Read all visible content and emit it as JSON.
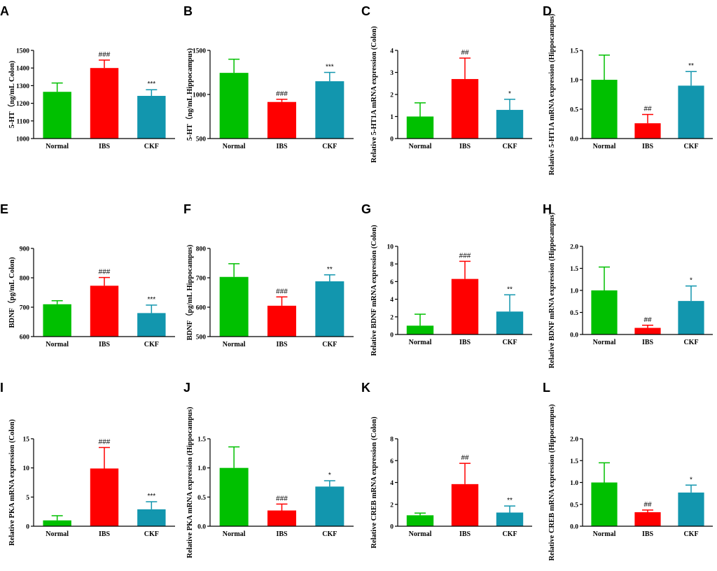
{
  "colors": {
    "Normal": "#00c000",
    "IBS": "#ff0000",
    "CKF": "#1296ae"
  },
  "chart_data": [
    {
      "panel": "A",
      "type": "bar",
      "ylabel": "5-HT（ng/mL Colon)",
      "categories": [
        "Normal",
        "IBS",
        "CKF"
      ],
      "ylim": [
        1000,
        1500
      ],
      "yticks": [
        "1000",
        "1100",
        "1200",
        "1300",
        "1400",
        "1500"
      ],
      "values": [
        1265,
        1400,
        1242
      ],
      "errors": [
        50,
        45,
        35
      ],
      "sig": [
        "",
        "###",
        "***"
      ]
    },
    {
      "panel": "B",
      "type": "bar",
      "ylabel": "5-HT（ng/mL Hippocampus)",
      "categories": [
        "Normal",
        "IBS",
        "CKF"
      ],
      "ylim": [
        500,
        1500
      ],
      "yticks": [
        "500",
        "1000",
        "1500"
      ],
      "values": [
        1245,
        915,
        1150
      ],
      "errors": [
        155,
        30,
        100
      ],
      "sig": [
        "",
        "###",
        "***"
      ]
    },
    {
      "panel": "C",
      "type": "bar",
      "ylabel": "Relative 5-HT1A mRNA expression (Colon)",
      "categories": [
        "Normal",
        "IBS",
        "CKF"
      ],
      "ylim": [
        0,
        4
      ],
      "yticks": [
        "0",
        "1",
        "2",
        "3",
        "4"
      ],
      "values": [
        1.0,
        2.7,
        1.3
      ],
      "errors": [
        0.62,
        0.95,
        0.48
      ],
      "sig": [
        "",
        "##",
        "*"
      ]
    },
    {
      "panel": "D",
      "type": "bar",
      "ylabel": "Relative 5-HT1A mRNA expression (Hippocampus)",
      "categories": [
        "Normal",
        "IBS",
        "CKF"
      ],
      "ylim": [
        0,
        1.5
      ],
      "yticks": [
        "0.0",
        "0.5",
        "1.0",
        "1.5"
      ],
      "values": [
        1.0,
        0.26,
        0.9
      ],
      "errors": [
        0.42,
        0.15,
        0.24
      ],
      "sig": [
        "",
        "##",
        "**"
      ]
    },
    {
      "panel": "E",
      "type": "bar",
      "ylabel": "BDNF（pg/mL Colon)",
      "categories": [
        "Normal",
        "IBS",
        "CKF"
      ],
      "ylim": [
        600,
        900
      ],
      "yticks": [
        "600",
        "700",
        "800",
        "900"
      ],
      "values": [
        710,
        773,
        680
      ],
      "errors": [
        12,
        28,
        27
      ],
      "sig": [
        "",
        "###",
        "***"
      ]
    },
    {
      "panel": "F",
      "type": "bar",
      "ylabel": "BDNF（pg/mL Hippocampus)",
      "categories": [
        "Normal",
        "IBS",
        "CKF"
      ],
      "ylim": [
        500,
        800
      ],
      "yticks": [
        "500",
        "600",
        "700",
        "800"
      ],
      "values": [
        703,
        605,
        688
      ],
      "errors": [
        45,
        30,
        22
      ],
      "sig": [
        "",
        "###",
        "**"
      ]
    },
    {
      "panel": "G",
      "type": "bar",
      "ylabel": "Relative BDNF mRNA expression (Colon)",
      "categories": [
        "Normal",
        "IBS",
        "CKF"
      ],
      "ylim": [
        0,
        10
      ],
      "yticks": [
        "0",
        "2",
        "4",
        "6",
        "8",
        "10"
      ],
      "values": [
        1.0,
        6.3,
        2.6
      ],
      "errors": [
        1.3,
        2.0,
        1.9
      ],
      "sig": [
        "",
        "###",
        "**"
      ]
    },
    {
      "panel": "H",
      "type": "bar",
      "ylabel": "Relative BDNF mRNA expression (Hippocampus)",
      "categories": [
        "Normal",
        "IBS",
        "CKF"
      ],
      "ylim": [
        0,
        2.0
      ],
      "yticks": [
        "0.0",
        "0.5",
        "1.0",
        "1.5",
        "2.0"
      ],
      "values": [
        1.0,
        0.15,
        0.76
      ],
      "errors": [
        0.53,
        0.06,
        0.34
      ],
      "sig": [
        "",
        "##",
        "*"
      ]
    },
    {
      "panel": "I",
      "type": "bar",
      "ylabel": "Relative PKA mRNA expression (Colon)",
      "categories": [
        "Normal",
        "IBS",
        "CKF"
      ],
      "ylim": [
        0,
        15
      ],
      "yticks": [
        "0",
        "5",
        "10",
        "15"
      ],
      "values": [
        1.0,
        9.9,
        2.9
      ],
      "errors": [
        0.8,
        3.6,
        1.3
      ],
      "sig": [
        "",
        "###",
        "***"
      ]
    },
    {
      "panel": "J",
      "type": "bar",
      "ylabel": "Relative PKA mRNA expression (Hippocampus)",
      "categories": [
        "Normal",
        "IBS",
        "CKF"
      ],
      "ylim": [
        0,
        1.5
      ],
      "yticks": [
        "0.0",
        "0.5",
        "1.0",
        "1.5"
      ],
      "values": [
        1.0,
        0.27,
        0.68
      ],
      "errors": [
        0.36,
        0.11,
        0.1
      ],
      "sig": [
        "",
        "###",
        "*"
      ]
    },
    {
      "panel": "K",
      "type": "bar",
      "ylabel": "Relative CREB mRNA expression (Colon)",
      "categories": [
        "Normal",
        "IBS",
        "CKF"
      ],
      "ylim": [
        0,
        8
      ],
      "yticks": [
        "0",
        "2",
        "4",
        "6",
        "8"
      ],
      "values": [
        1.0,
        3.85,
        1.25
      ],
      "errors": [
        0.2,
        1.9,
        0.6
      ],
      "sig": [
        "",
        "##",
        "**"
      ]
    },
    {
      "panel": "L",
      "type": "bar",
      "ylabel": "Relative CREB mRNA expression (Hippocampus)",
      "categories": [
        "Normal",
        "IBS",
        "CKF"
      ],
      "ylim": [
        0,
        2.0
      ],
      "yticks": [
        "0.0",
        "0.5",
        "1.0",
        "1.5",
        "2.0"
      ],
      "values": [
        1.0,
        0.32,
        0.77
      ],
      "errors": [
        0.45,
        0.05,
        0.17
      ],
      "sig": [
        "",
        "##",
        "*"
      ]
    }
  ]
}
